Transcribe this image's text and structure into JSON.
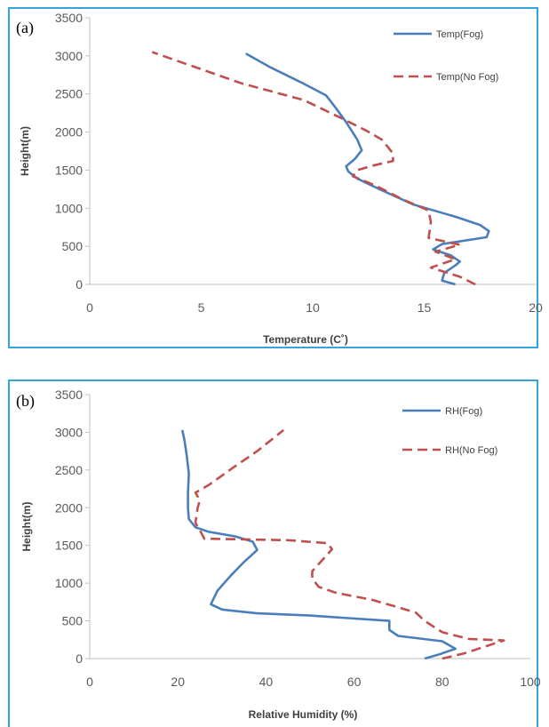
{
  "chart_data": [
    {
      "type": "line",
      "panel_label": "(a)",
      "xlabel": "Temperature (C˚)",
      "ylabel": "Height(m)",
      "xlim": [
        0,
        20
      ],
      "ylim": [
        0,
        3500
      ],
      "xticks": [
        0,
        5,
        10,
        15,
        20
      ],
      "yticks": [
        0,
        500,
        1000,
        1500,
        2000,
        2500,
        3000,
        3500
      ],
      "grid": false,
      "legend_position": "top-right",
      "series": [
        {
          "name": "Temp(Fog)",
          "color": "#4a7ebb",
          "dash": "solid",
          "points": [
            [
              16.4,
              0
            ],
            [
              15.8,
              50
            ],
            [
              15.9,
              150
            ],
            [
              16.4,
              250
            ],
            [
              16.6,
              300
            ],
            [
              16.2,
              380
            ],
            [
              15.4,
              460
            ],
            [
              15.8,
              530
            ],
            [
              17.8,
              620
            ],
            [
              17.9,
              700
            ],
            [
              17.5,
              780
            ],
            [
              16.5,
              880
            ],
            [
              14.5,
              1050
            ],
            [
              13.0,
              1250
            ],
            [
              12.0,
              1390
            ],
            [
              11.6,
              1480
            ],
            [
              11.5,
              1550
            ],
            [
              11.9,
              1650
            ],
            [
              12.2,
              1760
            ],
            [
              12.0,
              1900
            ],
            [
              11.5,
              2130
            ],
            [
              11.0,
              2330
            ],
            [
              10.6,
              2480
            ],
            [
              9.5,
              2650
            ],
            [
              8.1,
              2850
            ],
            [
              7.0,
              3030
            ]
          ]
        },
        {
          "name": "Temp(No Fog)",
          "color": "#c0504d",
          "dash": "dashed",
          "points": [
            [
              17.3,
              0
            ],
            [
              16.6,
              100
            ],
            [
              15.3,
              220
            ],
            [
              16.4,
              330
            ],
            [
              15.5,
              430
            ],
            [
              16.6,
              520
            ],
            [
              15.2,
              610
            ],
            [
              15.3,
              820
            ],
            [
              15.2,
              970
            ],
            [
              14.8,
              1020
            ],
            [
              14.0,
              1120
            ],
            [
              12.8,
              1300
            ],
            [
              11.8,
              1420
            ],
            [
              12.0,
              1500
            ],
            [
              12.7,
              1560
            ],
            [
              13.6,
              1620
            ],
            [
              13.6,
              1720
            ],
            [
              13.1,
              1900
            ],
            [
              12.4,
              2020
            ],
            [
              11.3,
              2180
            ],
            [
              9.6,
              2420
            ],
            [
              6.8,
              2640
            ],
            [
              2.8,
              3050
            ]
          ]
        }
      ]
    },
    {
      "type": "line",
      "panel_label": "(b)",
      "xlabel": "Relative Humidity (%)",
      "ylabel": "Height(m)",
      "xlim": [
        0,
        100
      ],
      "ylim": [
        0,
        3500
      ],
      "xticks": [
        0,
        20,
        40,
        60,
        80,
        100
      ],
      "yticks": [
        0,
        500,
        1000,
        1500,
        2000,
        2500,
        3000,
        3500
      ],
      "grid": false,
      "legend_position": "top-right",
      "series": [
        {
          "name": "RH(Fog)",
          "color": "#4a7ebb",
          "dash": "solid",
          "points": [
            [
              76,
              0
            ],
            [
              79,
              50
            ],
            [
              83,
              130
            ],
            [
              80,
              230
            ],
            [
              70,
              300
            ],
            [
              68,
              380
            ],
            [
              68,
              500
            ],
            [
              50,
              570
            ],
            [
              38,
              600
            ],
            [
              30,
              650
            ],
            [
              27.5,
              720
            ],
            [
              29,
              900
            ],
            [
              32,
              1100
            ],
            [
              35,
              1280
            ],
            [
              38,
              1440
            ],
            [
              37,
              1550
            ],
            [
              33,
              1620
            ],
            [
              27,
              1680
            ],
            [
              24,
              1740
            ],
            [
              22.5,
              1850
            ],
            [
              22.3,
              2000
            ],
            [
              22.3,
              2200
            ],
            [
              22.5,
              2450
            ],
            [
              22,
              2700
            ],
            [
              21.5,
              2900
            ],
            [
              21,
              3030
            ]
          ]
        },
        {
          "name": "RH(No Fog)",
          "color": "#c0504d",
          "dash": "dashed",
          "points": [
            [
              80,
              0
            ],
            [
              85,
              70
            ],
            [
              94,
              240
            ],
            [
              86,
              260
            ],
            [
              80,
              350
            ],
            [
              76,
              500
            ],
            [
              74,
              610
            ],
            [
              70,
              680
            ],
            [
              64,
              780
            ],
            [
              56,
              870
            ],
            [
              52,
              950
            ],
            [
              50.5,
              1060
            ],
            [
              50.5,
              1160
            ],
            [
              53,
              1320
            ],
            [
              55,
              1450
            ],
            [
              54,
              1530
            ],
            [
              45,
              1570
            ],
            [
              26,
              1590
            ],
            [
              25,
              1700
            ],
            [
              24,
              1800
            ],
            [
              24.5,
              2000
            ],
            [
              25,
              2100
            ],
            [
              24,
              2200
            ],
            [
              27,
              2300
            ],
            [
              33,
              2550
            ],
            [
              38,
              2750
            ],
            [
              44,
              3030
            ]
          ]
        }
      ]
    }
  ]
}
